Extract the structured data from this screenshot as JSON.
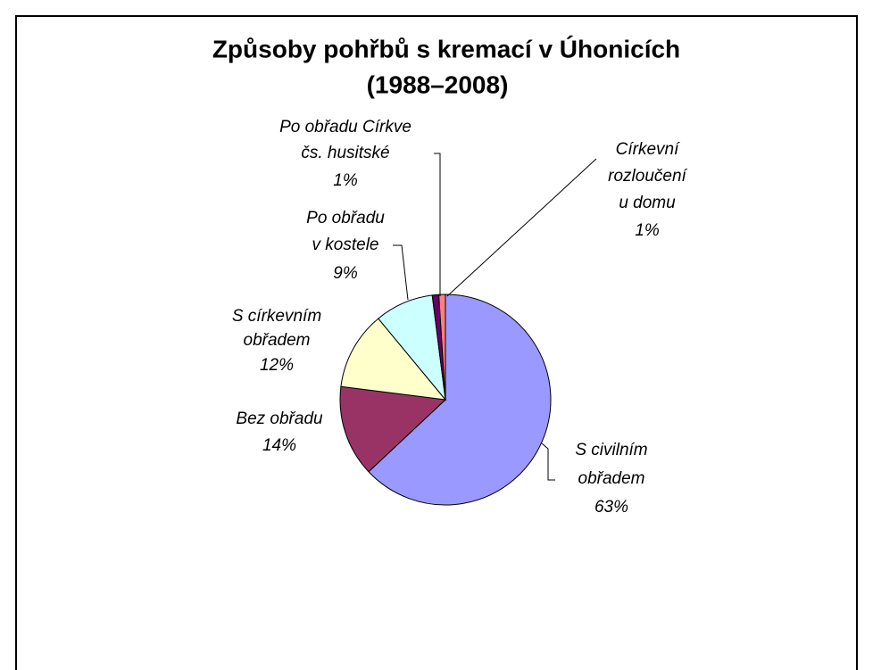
{
  "chart_data": {
    "type": "pie",
    "title": [
      "Způsoby pohřbů s kremací v Úhonicích",
      "(1988–2008)"
    ],
    "categories": [
      [
        "S civilním",
        "obřadem"
      ],
      [
        "Bez obřadu"
      ],
      [
        "S církevním",
        "obřadem"
      ],
      [
        "Po obřadu",
        "v kostele"
      ],
      [
        "Po obřadu Církve",
        "čs. husitské"
      ],
      [
        "Církevní",
        "rozloučení",
        "u domu"
      ]
    ],
    "values": [
      63,
      14,
      12,
      9,
      1,
      1
    ],
    "value_labels": [
      "63%",
      "14%",
      "12%",
      "9%",
      "1%",
      "1%"
    ],
    "colors": [
      "#9999ff",
      "#993366",
      "#ffffcc",
      "#ccffff",
      "#660066",
      "#ff8080"
    ]
  }
}
